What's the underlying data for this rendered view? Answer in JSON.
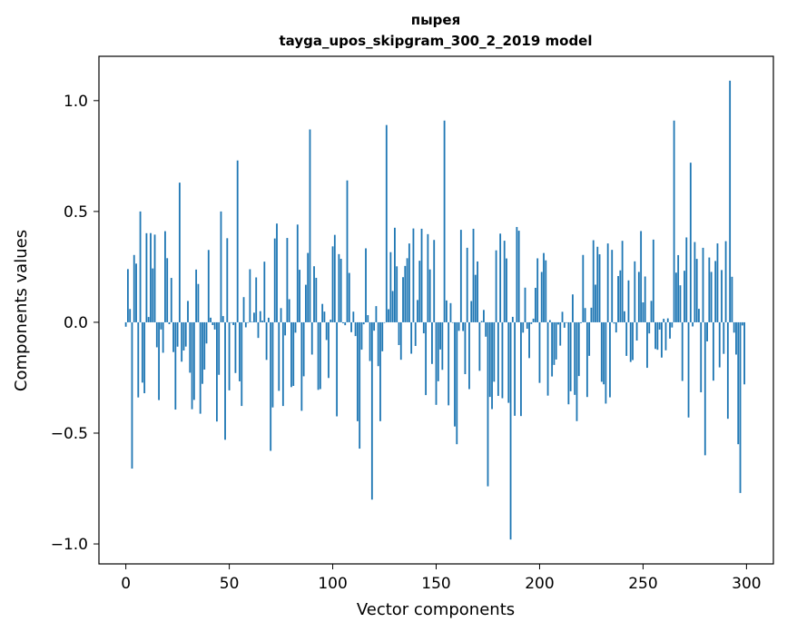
{
  "chart_data": {
    "type": "bar",
    "title": "пырея",
    "subtitle": "tayga_upos_skipgram_300_2_2019 model",
    "xlabel": "Vector components",
    "ylabel": "Components values",
    "xlim": [
      -13,
      313
    ],
    "ylim": [
      -1.09,
      1.2
    ],
    "xticks": [
      0,
      50,
      100,
      150,
      200,
      250,
      300
    ],
    "xtick_labels": [
      "0",
      "50",
      "100",
      "150",
      "200",
      "250",
      "300"
    ],
    "yticks": [
      -1.0,
      -0.5,
      0.0,
      0.5,
      1.0
    ],
    "ytick_labels": [
      "−1.0",
      "−0.5",
      "0.0",
      "0.5",
      "1.0"
    ],
    "bar_color": "#1f77b4",
    "grid": false,
    "n_components": 300,
    "highlights": [
      {
        "x": 0,
        "value": -0.02
      },
      {
        "x": 1,
        "value": 0.24
      },
      {
        "x": 2,
        "value": 0.06
      },
      {
        "x": 3,
        "value": -0.66
      },
      {
        "x": 7,
        "value": 0.5
      },
      {
        "x": 9,
        "value": -0.32
      },
      {
        "x": 26,
        "value": 0.63
      },
      {
        "x": 33,
        "value": -0.35
      },
      {
        "x": 46,
        "value": 0.5
      },
      {
        "x": 48,
        "value": -0.53
      },
      {
        "x": 54,
        "value": 0.73
      },
      {
        "x": 70,
        "value": -0.58
      },
      {
        "x": 89,
        "value": 0.87
      },
      {
        "x": 107,
        "value": 0.64
      },
      {
        "x": 113,
        "value": -0.57
      },
      {
        "x": 119,
        "value": -0.8
      },
      {
        "x": 126,
        "value": 0.89
      },
      {
        "x": 154,
        "value": 0.91
      },
      {
        "x": 159,
        "value": -0.47
      },
      {
        "x": 160,
        "value": -0.55
      },
      {
        "x": 175,
        "value": -0.74
      },
      {
        "x": 186,
        "value": -0.98
      },
      {
        "x": 189,
        "value": 0.43
      },
      {
        "x": 265,
        "value": 0.91
      },
      {
        "x": 273,
        "value": 0.72
      },
      {
        "x": 280,
        "value": -0.6
      },
      {
        "x": 292,
        "value": 1.09
      },
      {
        "x": 296,
        "value": -0.55
      },
      {
        "x": 297,
        "value": -0.77
      },
      {
        "x": 299,
        "value": -0.28
      }
    ],
    "seed": 7
  }
}
